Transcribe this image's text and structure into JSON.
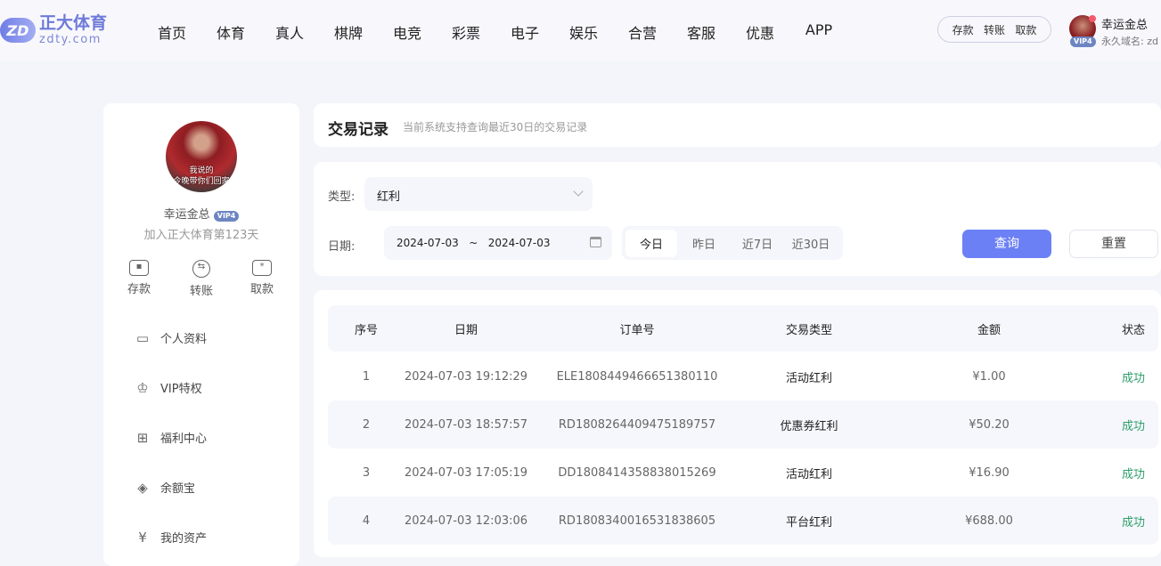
{
  "header": {
    "logo_mark": "ZD",
    "logo_cn": "正大体育",
    "logo_en": "zdty.com",
    "nav": [
      "首页",
      "体育",
      "真人",
      "棋牌",
      "电竞",
      "彩票",
      "电子",
      "娱乐",
      "合营",
      "客服",
      "优惠",
      "APP"
    ],
    "fund": [
      "存款",
      "转账",
      "取款"
    ],
    "user_name": "幸运金总",
    "vip": "VIP4",
    "domain": "永久域名: zd"
  },
  "sidebar": {
    "avatar_caption": [
      "我说的",
      "今晚带你们回家"
    ],
    "name": "幸运金总",
    "vip": "VIP4",
    "join": "加入正大体育第123天",
    "quick": [
      {
        "label": "存款",
        "icon": "wallet-icon"
      },
      {
        "label": "转账",
        "icon": "transfer-icon"
      },
      {
        "label": "取款",
        "icon": "withdraw-icon"
      }
    ],
    "menu": [
      {
        "label": "个人资料",
        "icon": "id-card-icon"
      },
      {
        "label": "VIP特权",
        "icon": "crown-icon"
      },
      {
        "label": "福利中心",
        "icon": "gift-icon"
      },
      {
        "label": "余额宝",
        "icon": "money-bag-icon"
      },
      {
        "label": "我的资产",
        "icon": "assets-icon"
      }
    ]
  },
  "main": {
    "title": "交易记录",
    "subtitle": "当前系统支持查询最近30日的交易记录",
    "filter": {
      "type_label": "类型:",
      "type_value": "红利",
      "date_label": "日期:",
      "date_from": "2024-07-03",
      "date_sep": "~",
      "date_to": "2024-07-03",
      "quick_dates": [
        "今日",
        "昨日",
        "近7日",
        "近30日"
      ],
      "active_quick": "今日",
      "query": "查询",
      "reset": "重置"
    },
    "table": {
      "columns": [
        "序号",
        "日期",
        "订单号",
        "交易类型",
        "金额",
        "状态"
      ],
      "rows": [
        [
          "1",
          "2024-07-03 19:12:29",
          "ELE1808449466651380110",
          "活动红利",
          "¥1.00",
          "成功"
        ],
        [
          "2",
          "2024-07-03 18:57:57",
          "RD1808264409475189757",
          "优惠券红利",
          "¥50.20",
          "成功"
        ],
        [
          "3",
          "2024-07-03 17:05:19",
          "DD1808414358838015269",
          "活动红利",
          "¥16.90",
          "成功"
        ],
        [
          "4",
          "2024-07-03 12:03:06",
          "RD1808340016531838605",
          "平台红利",
          "¥688.00",
          "成功"
        ]
      ]
    }
  },
  "colors": {
    "accent": "#6c80f5",
    "success": "#2e9e6b",
    "vip": "#6d85c2"
  }
}
